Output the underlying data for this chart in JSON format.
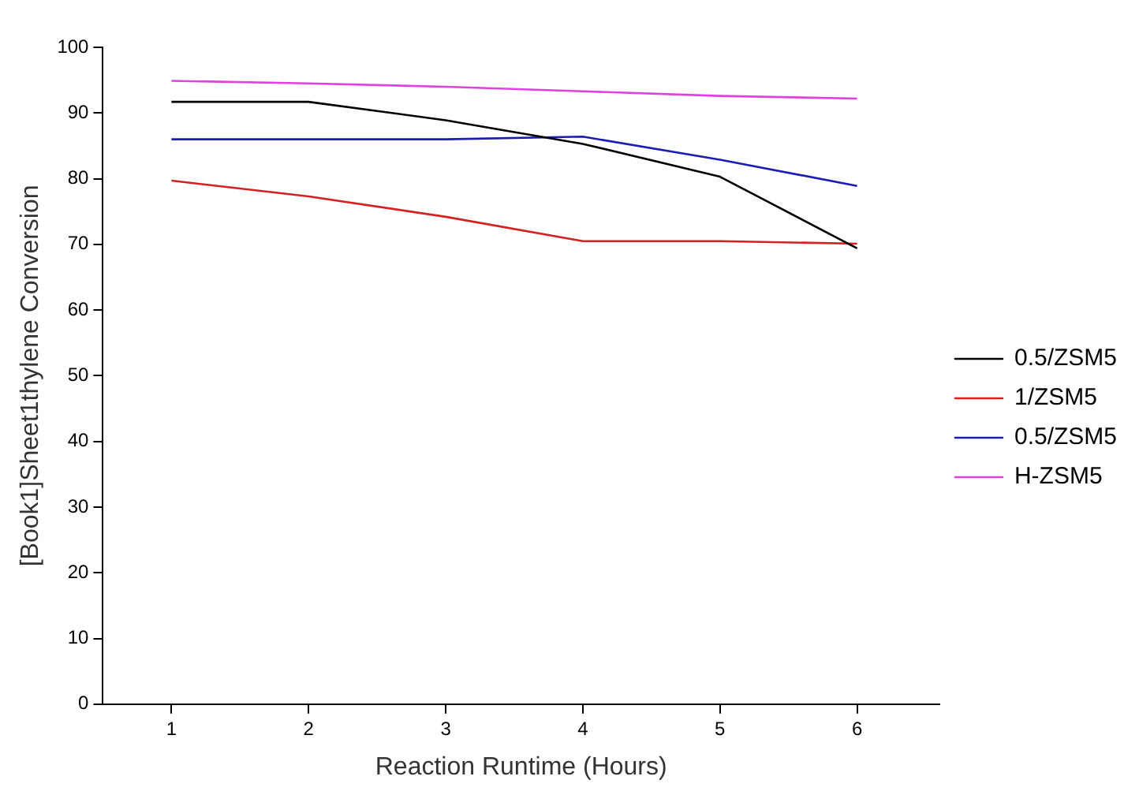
{
  "chart_data": {
    "type": "line",
    "xlabel": "Reaction Runtime (Hours)",
    "ylabel": "[Book1]Sheet1thylene Conversion",
    "x": [
      1,
      2,
      3,
      4,
      5,
      6
    ],
    "series": [
      {
        "name": "0.5/ZSM5",
        "color": "#000000",
        "values": [
          91.7,
          91.7,
          88.9,
          85.3,
          80.3,
          69.4
        ]
      },
      {
        "name": "1/ZSM5",
        "color": "#d42020",
        "values": [
          79.7,
          77.3,
          74.2,
          70.5,
          70.5,
          70.1
        ]
      },
      {
        "name": "0.5/ZSM5",
        "color": "#1c1cb4",
        "values": [
          86.0,
          86.0,
          86.0,
          86.4,
          82.9,
          78.9
        ]
      },
      {
        "name": "H-ZSM5",
        "color": "#e040e0",
        "values": [
          94.9,
          94.5,
          94.0,
          93.3,
          92.6,
          92.2
        ]
      }
    ],
    "xlim": [
      0.5,
      6.6
    ],
    "xticks": [
      1,
      2,
      3,
      4,
      5,
      6
    ],
    "ylim": [
      0,
      100
    ],
    "yticks": [
      0,
      10,
      20,
      30,
      40,
      50,
      60,
      70,
      80,
      90,
      100
    ],
    "grid": false,
    "legend": "right",
    "marker": "none",
    "line_style": "solid"
  }
}
